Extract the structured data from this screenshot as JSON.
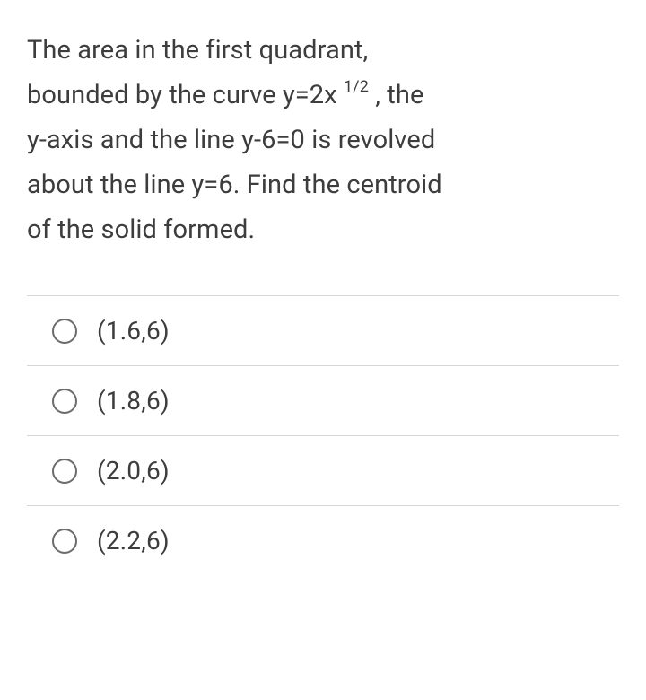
{
  "question": {
    "line1_a": "The area in the first quadrant,",
    "line2_a": "bounded by the curve y=2x ",
    "exp": "1/2",
    "line2_b": " , the",
    "line3": "y-axis and the line y-6=0 is revolved",
    "line4": "about the line y=6. Find the centroid",
    "line5": "of the solid formed."
  },
  "options": [
    {
      "label": "(1.6,6)"
    },
    {
      "label": "(1.8,6)"
    },
    {
      "label": "(2.0,6)"
    },
    {
      "label": "(2.2,6)"
    }
  ],
  "colors": {
    "text": "#3d3d3d",
    "divider": "#d6d6d6",
    "radio_border": "#6b6b6b",
    "background": "#ffffff"
  },
  "typography": {
    "question_fontsize": 29,
    "option_fontsize": 28,
    "line_height": 1.72
  }
}
